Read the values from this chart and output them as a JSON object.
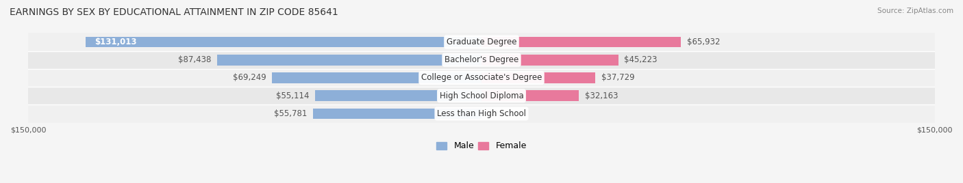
{
  "title": "EARNINGS BY SEX BY EDUCATIONAL ATTAINMENT IN ZIP CODE 85641",
  "source": "Source: ZipAtlas.com",
  "categories": [
    "Less than High School",
    "High School Diploma",
    "College or Associate's Degree",
    "Bachelor's Degree",
    "Graduate Degree"
  ],
  "male_values": [
    55781,
    55114,
    69249,
    87438,
    131013
  ],
  "female_values": [
    0,
    32163,
    37729,
    45223,
    65932
  ],
  "male_color": "#8dafd8",
  "female_color": "#e8799c",
  "male_label_color": "#555555",
  "female_label_color": "#555555",
  "graduate_label_color": "#ffffff",
  "bar_bg_color": "#e8e8e8",
  "row_bg_colors": [
    "#f0f0f0",
    "#e8e8e8"
  ],
  "max_value": 150000,
  "xlim": [
    -150000,
    150000
  ],
  "bar_height": 0.6,
  "background_color": "#f5f5f5",
  "title_fontsize": 10,
  "label_fontsize": 8.5,
  "axis_label_fontsize": 8,
  "legend_fontsize": 9
}
